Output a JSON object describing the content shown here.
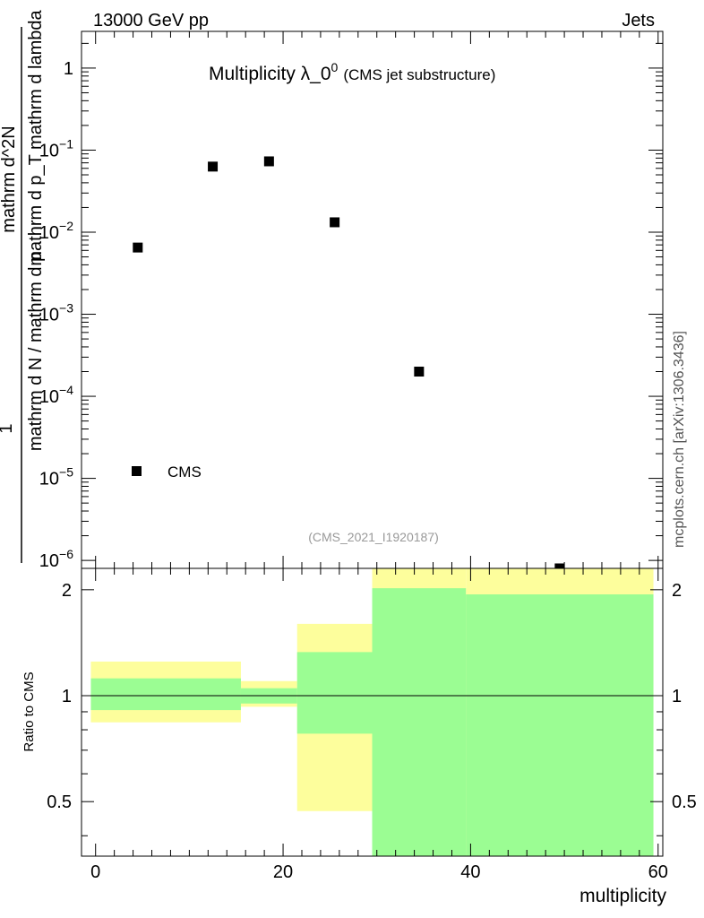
{
  "header": {
    "left_label": "13000 GeV pp",
    "right_label": "Jets",
    "side_label": "mcplots.cern.ch [arXiv:1306.3436]"
  },
  "chart_data": [
    {
      "type": "scatter",
      "title": "Multiplicity λ_0",
      "title_superscript": "0",
      "subtitle": "(CMS jet substructure)",
      "analysis_label": "(CMS_2021_I1920187)",
      "y_scale": "log",
      "ylim": [
        8e-07,
        2.8
      ],
      "xlim": [
        -1.5,
        60.5
      ],
      "ylabel_numerator": "1",
      "ylabel_numerator_bottom": "mathrm d N / mathrm d p",
      "ylabel_denominator": "mathrm d^2N",
      "ylabel_denominator_bottom": "mathrm d p_T mathrm d lambda",
      "y_ticks": [
        "1",
        "10^-1",
        "10^-2",
        "10^-3",
        "10^-4",
        "10^-5",
        "10^-6"
      ],
      "series": [
        {
          "name": "CMS",
          "marker": "square",
          "color": "#000000",
          "x": [
            4.5,
            12.5,
            18.5,
            25.5,
            34.5,
            49.5
          ],
          "y": [
            0.0065,
            0.063,
            0.073,
            0.0132,
            0.0002,
            8e-07
          ]
        }
      ],
      "legend_position": "bottom-left"
    },
    {
      "type": "area",
      "ylabel": "Ratio to CMS",
      "xlabel": "multiplicity",
      "ylim": [
        0.35,
        2.3
      ],
      "xlim": [
        -1.5,
        60.5
      ],
      "x_ticks": [
        "0",
        "20",
        "40",
        "60"
      ],
      "y_ticks": [
        "0.5",
        "1",
        "2"
      ],
      "reference_line": 1,
      "colors": {
        "inner_band": "#9bfd93",
        "outer_band": "#fdfe9c"
      },
      "bins": [
        {
          "x_low": -0.5,
          "x_high": 15.5,
          "inner": [
            0.91,
            1.12
          ],
          "outer": [
            0.84,
            1.25
          ]
        },
        {
          "x_low": 15.5,
          "x_high": 21.5,
          "inner": [
            0.95,
            1.05
          ],
          "outer": [
            0.93,
            1.1
          ]
        },
        {
          "x_low": 21.5,
          "x_high": 29.5,
          "inner": [
            0.78,
            1.33
          ],
          "outer": [
            0.47,
            1.6
          ]
        },
        {
          "x_low": 29.5,
          "x_high": 39.5,
          "inner": [
            0.35,
            2.02
          ],
          "outer": [
            0.35,
            2.3
          ]
        },
        {
          "x_low": 39.5,
          "x_high": 59.5,
          "inner": [
            0.35,
            1.94
          ],
          "outer": [
            0.35,
            2.3
          ]
        }
      ]
    }
  ]
}
